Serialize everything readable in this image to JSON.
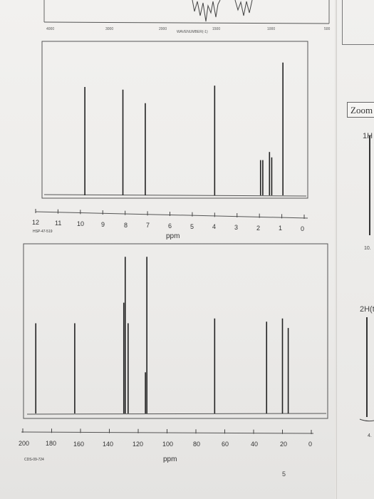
{
  "ir_strip": {
    "axis_labels": [
      "4000",
      "3000",
      "2000",
      "1500",
      "1000",
      "500"
    ],
    "axis_title": "WAVENUMBER(-1)"
  },
  "h_nmr": {
    "tick_labels": [
      "12",
      "11",
      "10",
      "9",
      "8",
      "7",
      "6",
      "5",
      "4",
      "3",
      "2",
      "1",
      "0"
    ],
    "unit": "ppm",
    "code": "HSP-47-519"
  },
  "c_nmr": {
    "tick_labels": [
      "200",
      "180",
      "160",
      "140",
      "120",
      "100",
      "80",
      "60",
      "40",
      "20",
      "0"
    ],
    "unit": "ppm",
    "code": "CDS-09-724"
  },
  "side_panel": {
    "zoom_label": "Zoom",
    "label_1h": "1H",
    "label_10": "10.",
    "label_2h": "2H(t",
    "label_4": "4."
  },
  "page_number": "5",
  "chart_data": [
    {
      "type": "bar",
      "xlabel": "ppm",
      "xlim": [
        12,
        0
      ],
      "peaks": [
        {
          "ppm": 9.8,
          "height": 0.8
        },
        {
          "ppm": 8.1,
          "height": 0.78
        },
        {
          "ppm": 7.1,
          "height": 0.68
        },
        {
          "ppm": 4.0,
          "height": 0.81
        },
        {
          "ppm": 1.95,
          "height": 0.26
        },
        {
          "ppm": 1.85,
          "height": 0.26
        },
        {
          "ppm": 1.55,
          "height": 0.32
        },
        {
          "ppm": 1.45,
          "height": 0.28
        },
        {
          "ppm": 0.95,
          "height": 0.98
        }
      ]
    },
    {
      "type": "bar",
      "xlabel": "ppm",
      "xlim": [
        200,
        0
      ],
      "peaks": [
        {
          "ppm": 191,
          "height": 0.57
        },
        {
          "ppm": 164,
          "height": 0.57
        },
        {
          "ppm": 130,
          "height": 0.7
        },
        {
          "ppm": 129,
          "height": 0.99
        },
        {
          "ppm": 127,
          "height": 0.57
        },
        {
          "ppm": 115,
          "height": 0.26
        },
        {
          "ppm": 114,
          "height": 0.99
        },
        {
          "ppm": 67,
          "height": 0.6
        },
        {
          "ppm": 31,
          "height": 0.58
        },
        {
          "ppm": 20,
          "height": 0.6
        },
        {
          "ppm": 16,
          "height": 0.54
        }
      ]
    }
  ]
}
